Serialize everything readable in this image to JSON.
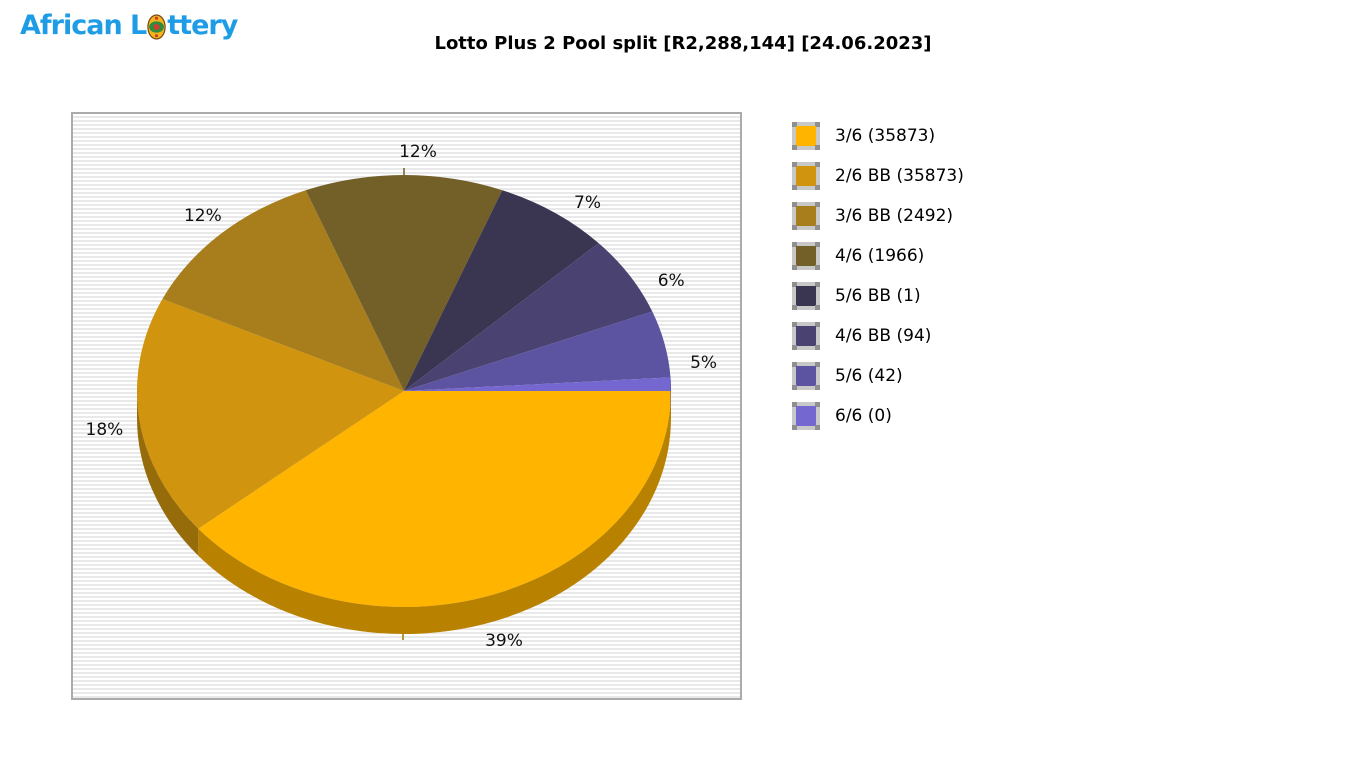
{
  "logo": {
    "part1": "African L",
    "part2": "ttery",
    "color": "#1E9CE6"
  },
  "header": {
    "title": "Lotto Plus 2 Pool split [R2,288,144] [24.06.2023]"
  },
  "chart_data": {
    "type": "pie",
    "title": "Lotto Plus 2 Pool split [R2,288,144] [24.06.2023]",
    "pool_amount": "R2,288,144",
    "draw_date": "24.06.2023",
    "start_angle_deg": 0,
    "direction": "clockwise",
    "legend_position": "right",
    "style": "3d-pie",
    "slices": [
      {
        "label": "3/6",
        "count": 35873,
        "percent": 39,
        "percent_label": "39%",
        "color": "#FFB400",
        "legend_label": "3/6 (35873)"
      },
      {
        "label": "2/6 BB",
        "count": 35873,
        "percent": 18,
        "percent_label": "18%",
        "color": "#D0940E",
        "legend_label": "2/6 BB (35873)"
      },
      {
        "label": "3/6 BB",
        "count": 2492,
        "percent": 12,
        "percent_label": "12%",
        "color": "#A87E1D",
        "legend_label": "3/6 BB (2492)"
      },
      {
        "label": "4/6",
        "count": 1966,
        "percent": 12,
        "percent_label": "12%",
        "color": "#735F28",
        "legend_label": "4/6 (1966)"
      },
      {
        "label": "5/6 BB",
        "count": 1,
        "percent": 7,
        "percent_label": "7%",
        "color": "#3A3550",
        "legend_label": "5/6 BB (1)"
      },
      {
        "label": "4/6 BB",
        "count": 94,
        "percent": 6,
        "percent_label": "6%",
        "color": "#4A4372",
        "legend_label": "4/6 BB (94)"
      },
      {
        "label": "5/6",
        "count": 42,
        "percent": 5,
        "percent_label": "5%",
        "color": "#5C54A0",
        "legend_label": "5/6 (42)"
      },
      {
        "label": "6/6",
        "count": 0,
        "percent": 1,
        "percent_label": "",
        "color": "#7468D0",
        "legend_label": "6/6 (0)"
      }
    ]
  }
}
